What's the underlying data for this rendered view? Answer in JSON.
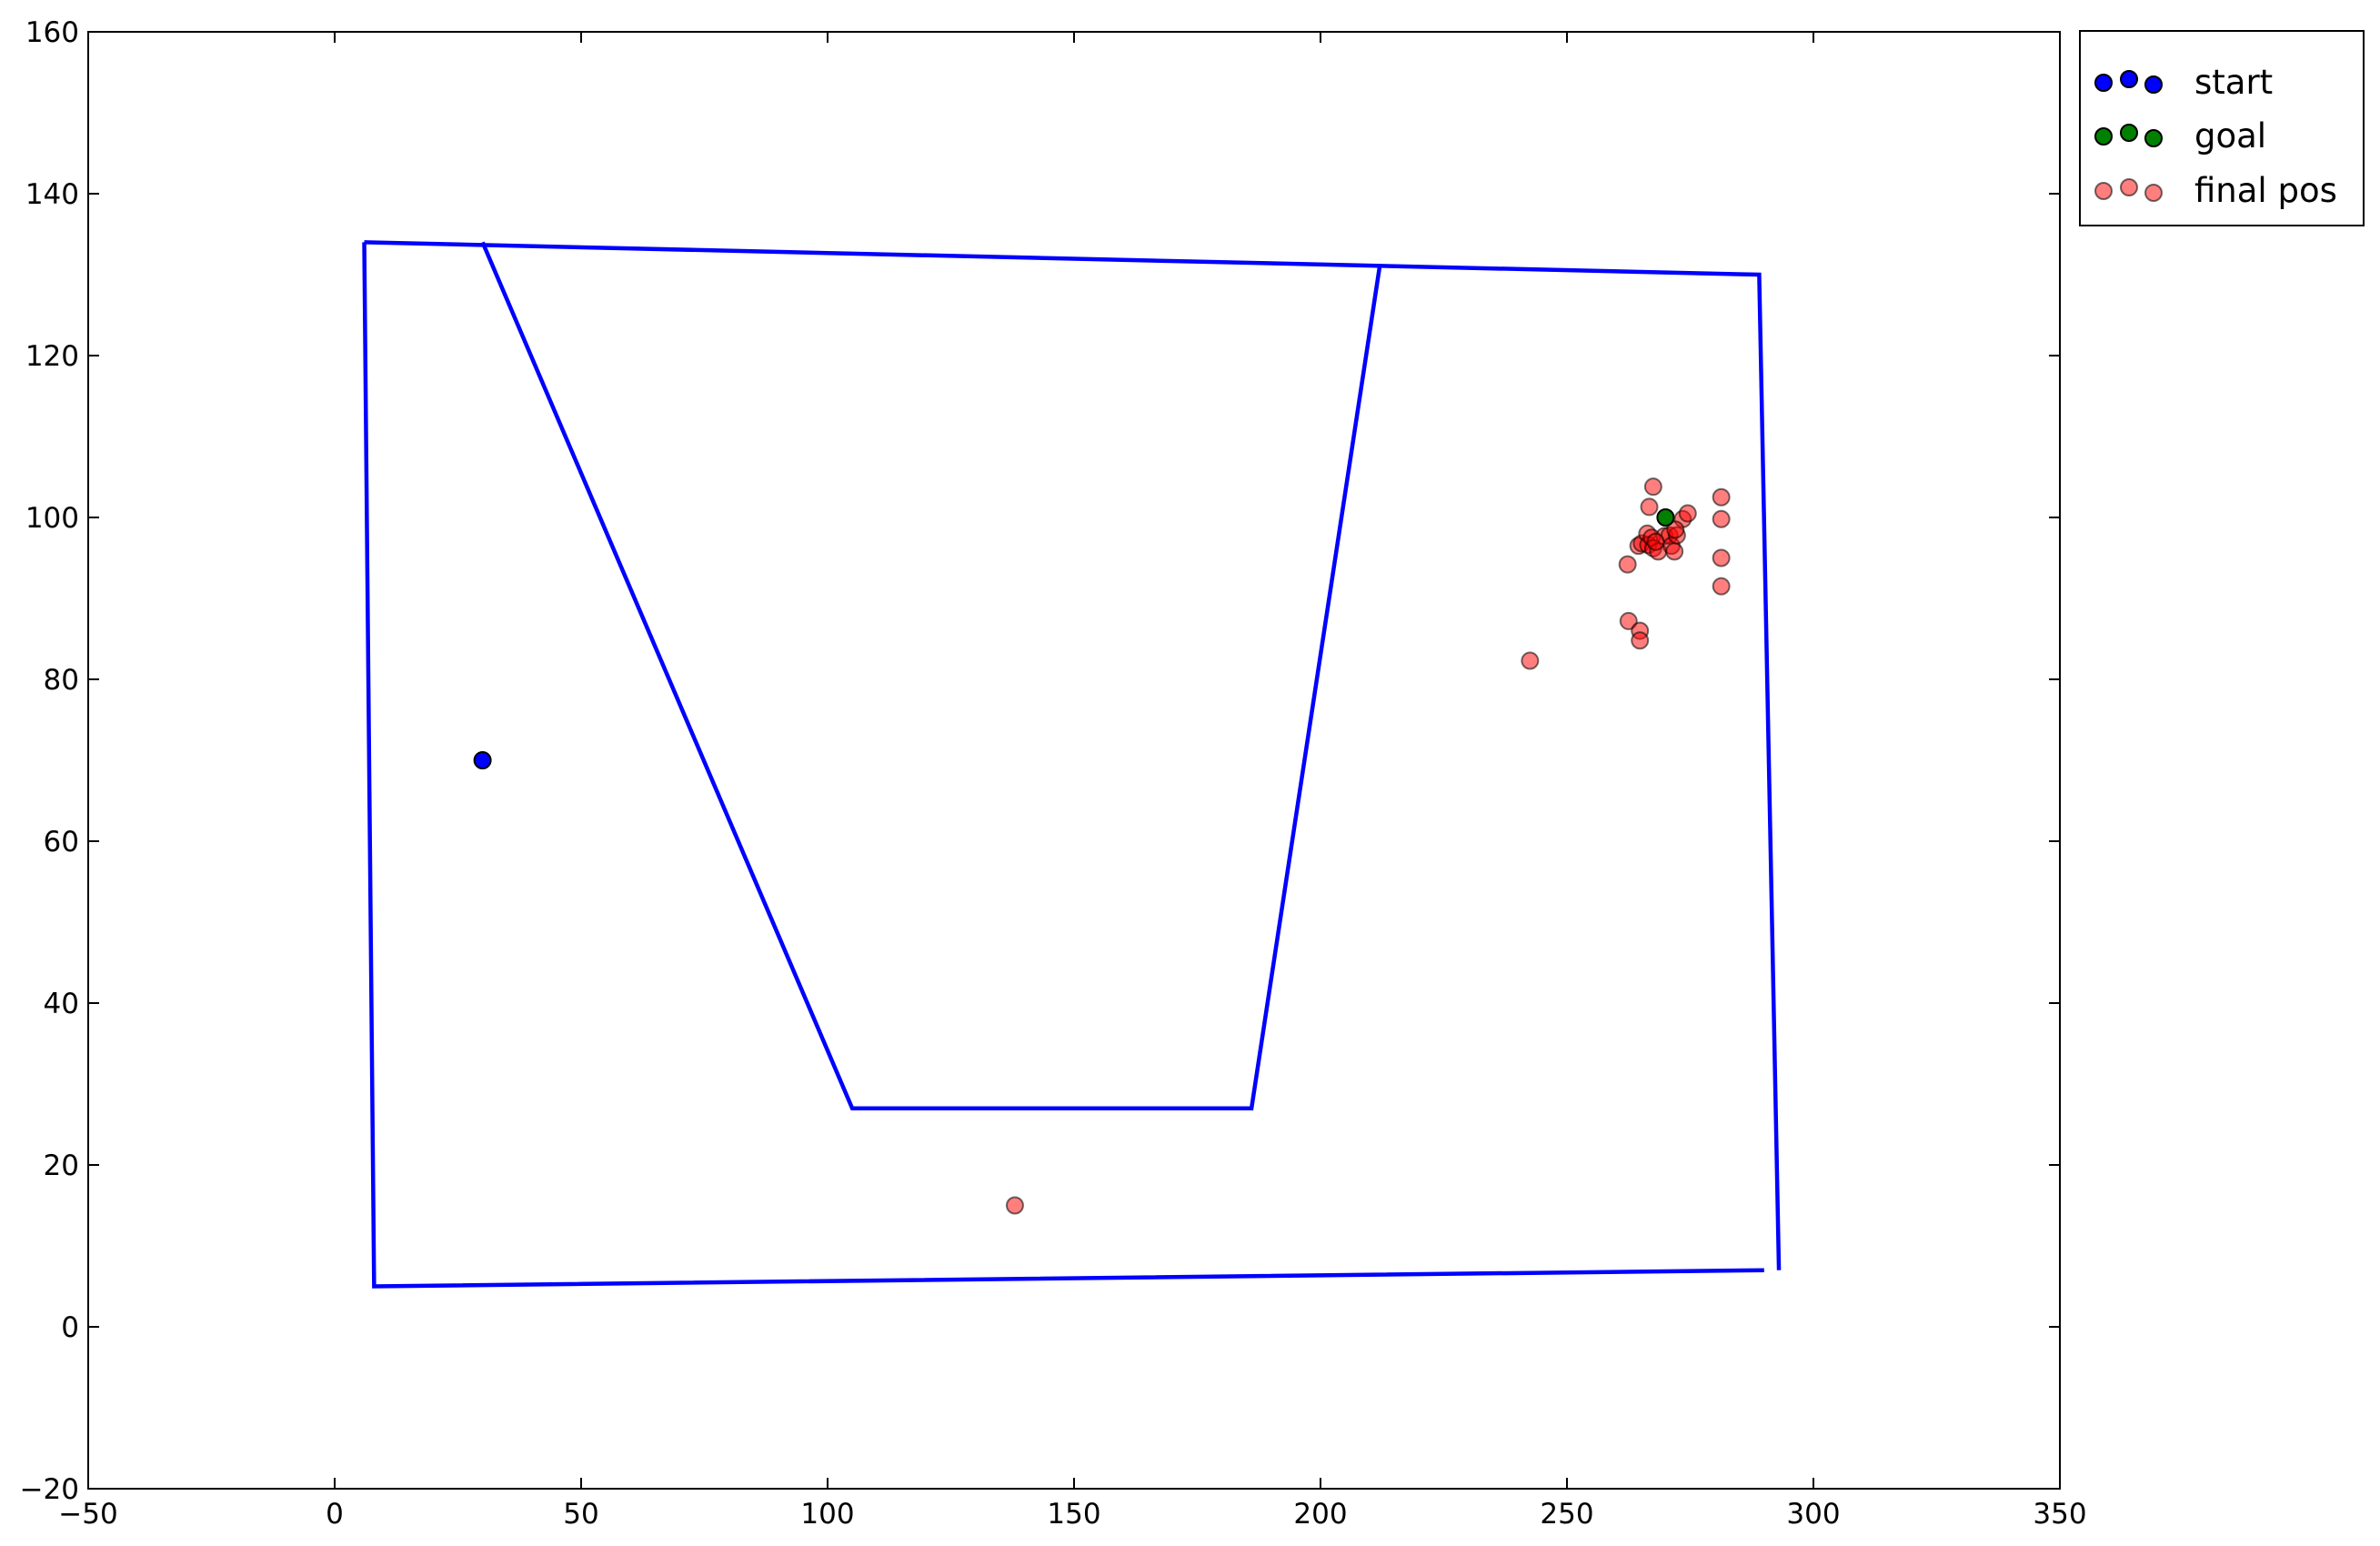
{
  "chart_data": {
    "type": "scatter",
    "title": "",
    "xlabel": "",
    "ylabel": "",
    "xlim": [
      -50,
      350
    ],
    "ylim": [
      -20,
      160
    ],
    "xticks": [
      -50,
      0,
      50,
      100,
      150,
      200,
      250,
      300,
      350
    ],
    "yticks": [
      -20,
      0,
      20,
      40,
      60,
      80,
      100,
      120,
      140,
      160
    ],
    "grid": false,
    "legend_position": "outside-top-right",
    "walls": [
      {
        "color": "#0000ff",
        "points": [
          [
            6,
            134
          ],
          [
            8,
            5
          ],
          [
            290,
            7
          ]
        ]
      },
      {
        "color": "#0000ff",
        "points": [
          [
            6,
            134
          ],
          [
            289,
            130
          ],
          [
            293,
            7
          ]
        ]
      },
      {
        "color": "#0000ff",
        "points": [
          [
            30,
            134
          ],
          [
            105,
            27
          ],
          [
            186,
            27
          ],
          [
            212,
            131
          ]
        ]
      }
    ],
    "series": [
      {
        "name": "start",
        "color": "#0000ff",
        "alpha": 1.0,
        "points": [
          [
            30,
            70
          ]
        ]
      },
      {
        "name": "goal",
        "color": "#008000",
        "alpha": 1.0,
        "points": [
          [
            270,
            100
          ]
        ]
      },
      {
        "name": "final pos",
        "color": "#ff0000",
        "alpha": 0.5,
        "points": [
          [
            138,
            15
          ],
          [
            242.5,
            82.3
          ],
          [
            262.5,
            87.2
          ],
          [
            264.8,
            86
          ],
          [
            264.8,
            84.8
          ],
          [
            262.3,
            94.2
          ],
          [
            264.5,
            96.5
          ],
          [
            265.2,
            96.8
          ],
          [
            266.3,
            98
          ],
          [
            266.5,
            96.6
          ],
          [
            266.7,
            101.3
          ],
          [
            267.5,
            103.8
          ],
          [
            267.2,
            97.5
          ],
          [
            267.5,
            96.2
          ],
          [
            268.5,
            95.8
          ],
          [
            269.8,
            97.7
          ],
          [
            270.8,
            97.8
          ],
          [
            271.2,
            96.5
          ],
          [
            271.8,
            95.8
          ],
          [
            272.3,
            97.8
          ],
          [
            273.5,
            99.8
          ],
          [
            274.5,
            100.5
          ],
          [
            281.3,
            102.5
          ],
          [
            281.3,
            99.8
          ],
          [
            281.3,
            95
          ],
          [
            281.3,
            91.5
          ],
          [
            268,
            97
          ],
          [
            272,
            98.5
          ]
        ]
      }
    ]
  }
}
